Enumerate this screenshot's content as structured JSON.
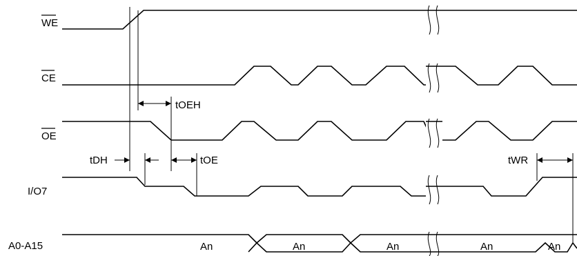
{
  "signals": {
    "we": "WE",
    "ce": "CE",
    "oe": "OE",
    "io7": "I/O7",
    "addr": "A0-A15"
  },
  "timing": {
    "toeh": "tOEH",
    "tdh": "tDH",
    "toe": "tOE",
    "twr": "tWR"
  },
  "address_labels": [
    "An",
    "An",
    "An",
    "An",
    "An"
  ]
}
